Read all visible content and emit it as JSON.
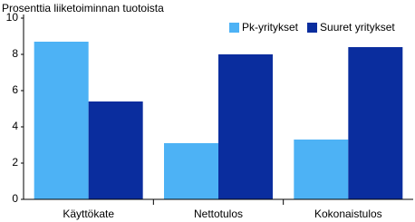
{
  "chart_data": {
    "type": "bar",
    "title": "Prosenttia liiketoiminnan tuotoista",
    "categories": [
      "Käyttökate",
      "Nettotulos",
      "Kokonaistulos"
    ],
    "series": [
      {
        "name": "Pk-yritykset",
        "color": "#4db2f5",
        "values": [
          8.7,
          3.1,
          3.3
        ]
      },
      {
        "name": "Suuret yritykset",
        "color": "#0a2d9e",
        "values": [
          5.4,
          8.0,
          8.4
        ]
      }
    ],
    "ylim": [
      0,
      10
    ],
    "yticks": [
      0,
      2,
      4,
      6,
      8,
      10
    ],
    "grid": false,
    "legend": "top-right"
  }
}
